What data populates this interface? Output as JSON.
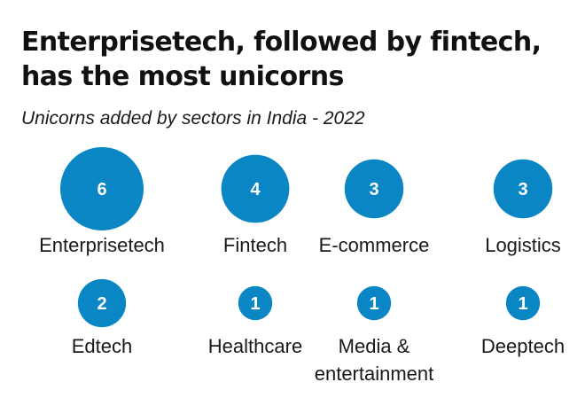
{
  "title_lines": [
    "Enterprisetech, followed by fintech,",
    "has the most unicorns"
  ],
  "subtitle": "Unicorns added by sectors in India - 2022",
  "colors": {
    "bubble": "#0a86c4",
    "text": "#1a1a1a"
  },
  "chart_data": {
    "type": "bubble",
    "title": "Enterprisetech, followed by fintech, has the most unicorns",
    "subtitle": "Unicorns added by sectors in India - 2022",
    "categories": [
      "Enterprisetech",
      "Fintech",
      "E-commerce",
      "Logistics",
      "Edtech",
      "Healthcare",
      "Media & entertainment",
      "Deeptech"
    ],
    "label_lines": [
      [
        "Enterprisetech"
      ],
      [
        "Fintech"
      ],
      [
        "E-commerce"
      ],
      [
        "Logistics"
      ],
      [
        "Edtech"
      ],
      [
        "Healthcare"
      ],
      [
        "Media &",
        "entertainment"
      ],
      [
        "Deeptech"
      ]
    ],
    "values": [
      6,
      4,
      3,
      3,
      2,
      1,
      1,
      1
    ]
  }
}
